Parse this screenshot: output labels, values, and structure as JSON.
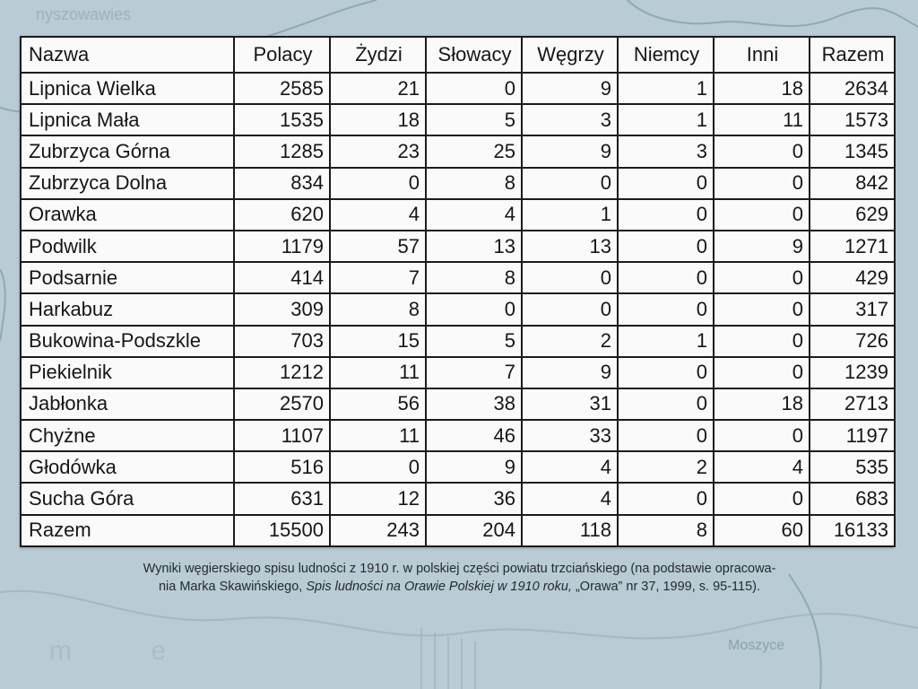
{
  "table": {
    "headers": [
      "Nazwa",
      "Polacy",
      "Żydzi",
      "Słowacy",
      "Węgrzy",
      "Niemcy",
      "Inni",
      "Razem"
    ],
    "rows": [
      [
        "Lipnica Wielka",
        "2585",
        "21",
        "0",
        "9",
        "1",
        "18",
        "2634"
      ],
      [
        "Lipnica Mała",
        "1535",
        "18",
        "5",
        "3",
        "1",
        "11",
        "1573"
      ],
      [
        "Zubrzyca Górna",
        "1285",
        "23",
        "25",
        "9",
        "3",
        "0",
        "1345"
      ],
      [
        "Zubrzyca Dolna",
        "834",
        "0",
        "8",
        "0",
        "0",
        "0",
        "842"
      ],
      [
        "Orawka",
        "620",
        "4",
        "4",
        "1",
        "0",
        "0",
        "629"
      ],
      [
        "Podwilk",
        "1179",
        "57",
        "13",
        "13",
        "0",
        "9",
        "1271"
      ],
      [
        "Podsarnie",
        "414",
        "7",
        "8",
        "0",
        "0",
        "0",
        "429"
      ],
      [
        "Harkabuz",
        "309",
        "8",
        "0",
        "0",
        "0",
        "0",
        "317"
      ],
      [
        "Bukowina-Podszkle",
        "703",
        "15",
        "5",
        "2",
        "1",
        "0",
        "726"
      ],
      [
        "Piekielnik",
        "1212",
        "11",
        "7",
        "9",
        "0",
        "0",
        "1239"
      ],
      [
        "Jabłonka",
        "2570",
        "56",
        "38",
        "31",
        "0",
        "18",
        "2713"
      ],
      [
        "Chyżne",
        "1107",
        "11",
        "46",
        "33",
        "0",
        "0",
        "1197"
      ],
      [
        "Głodówka",
        "516",
        "0",
        "9",
        "4",
        "2",
        "4",
        "535"
      ],
      [
        "Sucha Góra",
        "631",
        "12",
        "36",
        "4",
        "0",
        "0",
        "683"
      ],
      [
        "Razem",
        "15500",
        "243",
        "204",
        "118",
        "8",
        "60",
        "16133"
      ]
    ]
  },
  "caption": {
    "part1": "Wyniki węgierskiego spisu ludności z 1910 r. w polskiej części powiatu trzciańskiego (na podstawie opracowa-",
    "part2": "nia Marka Skawińskiego, ",
    "part3_italic": "Spis ludności na Orawie Polskiej w 1910 roku,",
    "part4": " „Orawa” nr 37, 1999, s. 95-115)."
  },
  "map_text": {
    "top_left": "nyszowawies",
    "bottom_right": "Moszyce",
    "bottom_left": "m e"
  },
  "colors": {
    "background": "#b9cbd4",
    "map_lines": "#8fa9b6",
    "table_bg": "#fafafa",
    "grid": "#1b1b1b"
  }
}
